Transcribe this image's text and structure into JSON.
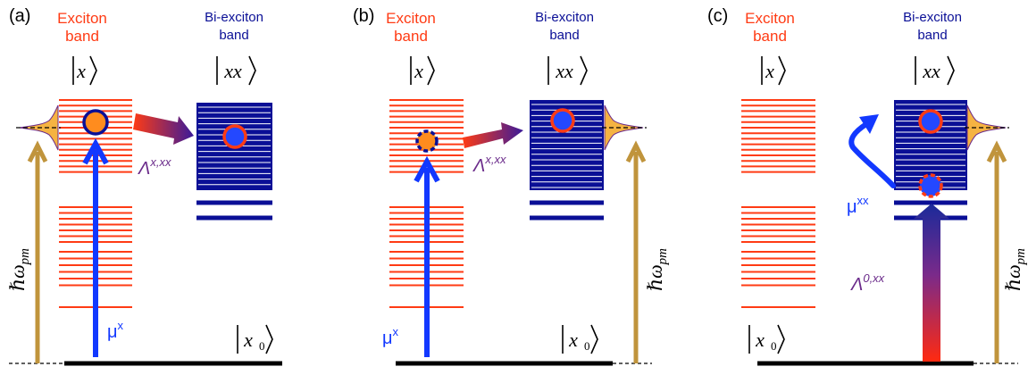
{
  "colors": {
    "exciton": "#ff3b14",
    "biexciton": "#0a0f96",
    "dipole": "#1238ff",
    "pump": "#c0943c",
    "dot_fill_orange": "#ff8c1e",
    "dot_fill_blue": "#2448ff",
    "ground": "#000000",
    "gaussian": "#f5b342",
    "purple": "#6a2a8a"
  },
  "panels": [
    {
      "label": "(a)",
      "exciton_title_1": "Exciton",
      "exciton_title_2": "band",
      "exciton_ket": "x",
      "biexciton_title_1": "Bi-exciton",
      "biexciton_title_2": "band",
      "biexciton_ket": "xx",
      "ground_ket": "x",
      "ground_ket_sub": "0",
      "dipole_label": "μ",
      "dipole_sup": "x",
      "transfer_label": "Λ",
      "transfer_sup": "x,xx",
      "pump_label": "ℏω",
      "pump_sub": "pm"
    },
    {
      "label": "(b)",
      "exciton_title_1": "Exciton",
      "exciton_title_2": "band",
      "exciton_ket": "x",
      "biexciton_title_1": "Bi-exciton",
      "biexciton_title_2": "band",
      "biexciton_ket": "xx",
      "ground_ket": "x",
      "ground_ket_sub": "0",
      "dipole_label": "μ",
      "dipole_sup": "x",
      "transfer_label": "Λ",
      "transfer_sup": "x,xx",
      "pump_label": "ℏω",
      "pump_sub": "pm"
    },
    {
      "label": "(c)",
      "exciton_title_1": "Exciton",
      "exciton_title_2": "band",
      "exciton_ket": "x",
      "biexciton_title_1": "Bi-exciton",
      "biexciton_title_2": "band",
      "biexciton_ket": "xx",
      "ground_ket": "x",
      "ground_ket_sub": "0",
      "dipole_label": "μ",
      "dipole_sup": "xx",
      "transfer_label": "Λ",
      "transfer_sup": "0,xx",
      "pump_label": "ℏω",
      "pump_sub": "pm"
    }
  ]
}
